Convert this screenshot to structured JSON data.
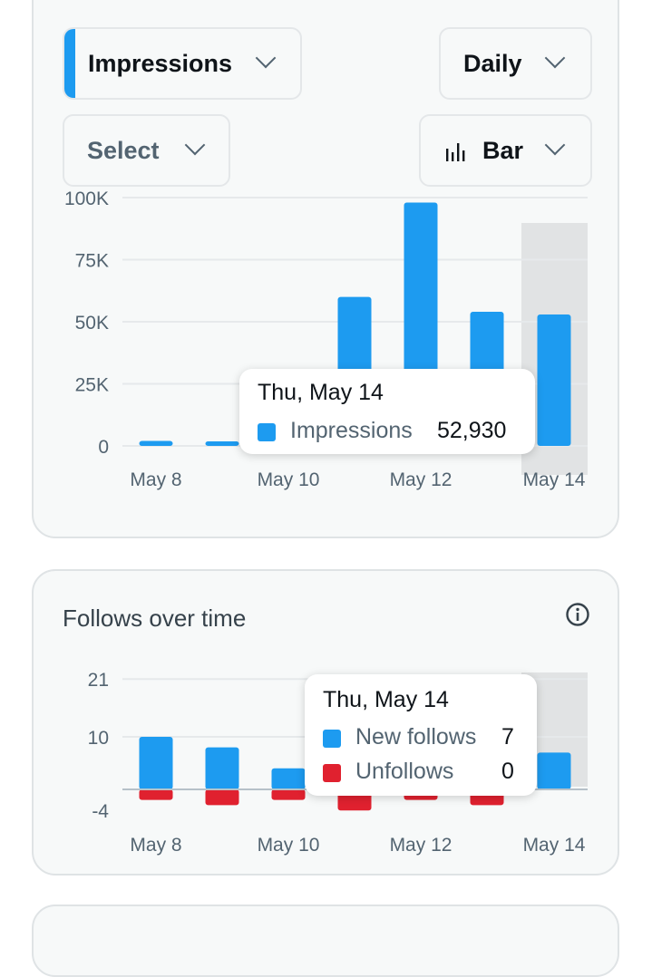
{
  "controls": {
    "metric": "Impressions",
    "interval": "Daily",
    "compare": "Select",
    "chart_type": "Bar",
    "colors": {
      "accent": "#1d9bf0",
      "negative": "#e0212f"
    }
  },
  "impressions_chart": {
    "y_ticks": [
      "100K",
      "75K",
      "50K",
      "25K",
      "0"
    ],
    "x_ticks": [
      "May 8",
      "May 10",
      "May 12",
      "May 14"
    ],
    "tooltip": {
      "date": "Thu, May 14",
      "label": "Impressions",
      "value": "52,930"
    }
  },
  "follows": {
    "title": "Follows over time",
    "info_icon": "info-icon",
    "y_ticks": [
      "21",
      "10",
      "-4"
    ],
    "x_ticks": [
      "May 8",
      "May 10",
      "May 12",
      "May 14"
    ],
    "tooltip": {
      "date": "Thu, May 14",
      "new_label": "New follows",
      "new_value": "7",
      "unf_label": "Unfollows",
      "unf_value": "0"
    }
  },
  "chart_data": [
    {
      "type": "bar",
      "categories": [
        "May 8",
        "May 9",
        "May 10",
        "May 11",
        "May 12",
        "May 13",
        "May 14"
      ],
      "series": [
        {
          "name": "Impressions",
          "values": [
            2000,
            1500,
            3000,
            60000,
            98000,
            54000,
            52930
          ]
        }
      ],
      "ylim": [
        0,
        100000
      ],
      "x_tick_labels": [
        "May 8",
        "May 10",
        "May 12",
        "May 14"
      ],
      "y_tick_labels": [
        "0",
        "25K",
        "50K",
        "75K",
        "100K"
      ],
      "highlighted_category": "May 14",
      "grid": true
    },
    {
      "type": "bar",
      "title": "Follows over time",
      "categories": [
        "May 8",
        "May 9",
        "May 10",
        "May 11",
        "May 12",
        "May 13",
        "May 14"
      ],
      "series": [
        {
          "name": "New follows",
          "color": "#1d9bf0",
          "values": [
            10,
            8,
            4,
            21,
            15,
            9,
            7
          ]
        },
        {
          "name": "Unfollows",
          "color": "#e0212f",
          "values": [
            -2,
            -3,
            -2,
            -4,
            -2,
            -3,
            0
          ]
        }
      ],
      "ylim": [
        -4,
        21
      ],
      "x_tick_labels": [
        "May 8",
        "May 10",
        "May 12",
        "May 14"
      ],
      "y_tick_labels": [
        "-4",
        "10",
        "21"
      ],
      "highlighted_category": "May 14",
      "grid": true
    }
  ]
}
